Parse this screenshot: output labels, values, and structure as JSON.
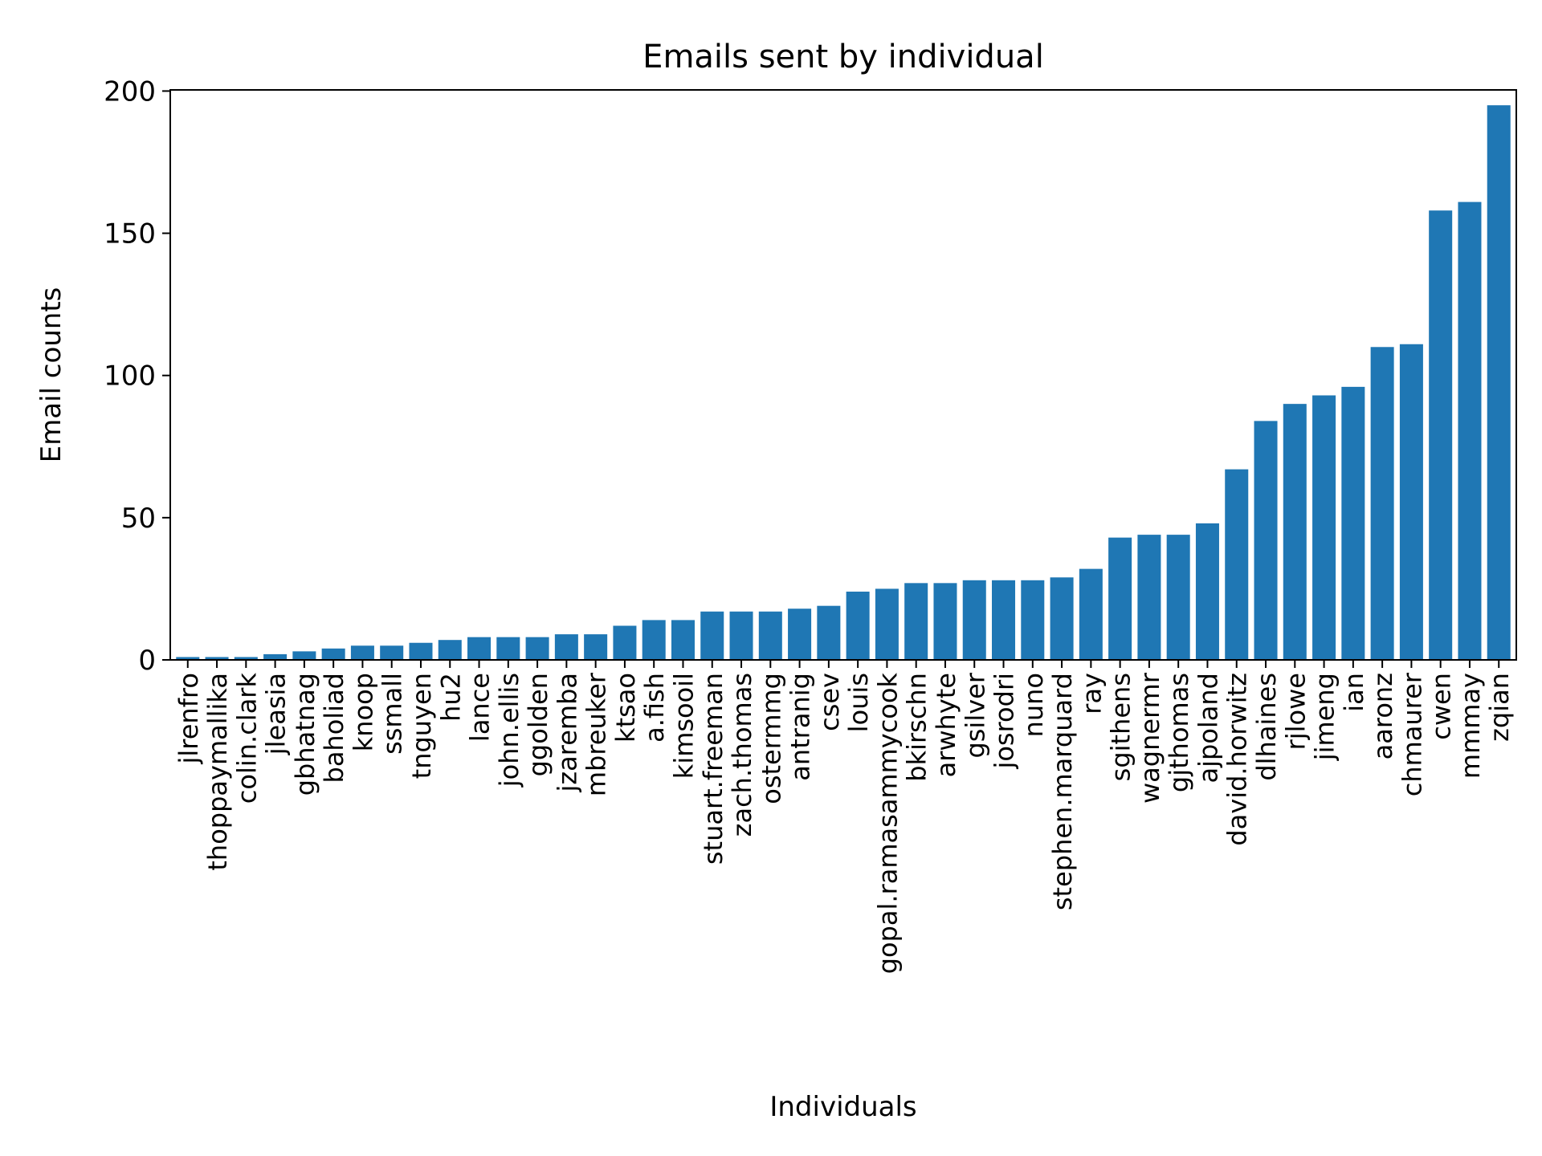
{
  "chart_data": {
    "type": "bar",
    "title": "Emails sent by individual",
    "xlabel": "Individuals",
    "ylabel": "Email counts",
    "ylim": [
      0,
      200
    ],
    "yticks": [
      0,
      50,
      100,
      150,
      200
    ],
    "grid": false,
    "color": "#1f77b4",
    "categories": [
      "jlrenfro",
      "thoppaymallika",
      "colin.clark",
      "jleasia",
      "gbhatnag",
      "baholiad",
      "knoop",
      "ssmall",
      "tnguyen",
      "hu2",
      "lance",
      "john.ellis",
      "ggolden",
      "jzaremba",
      "mbreuker",
      "ktsao",
      "a.fish",
      "kimsooil",
      "stuart.freeman",
      "zach.thomas",
      "ostermmg",
      "antranig",
      "csev",
      "louis",
      "gopal.ramasammycook",
      "bkirschn",
      "arwhyte",
      "gsilver",
      "josrodri",
      "nuno",
      "stephen.marquard",
      "ray",
      "sgithens",
      "wagnermr",
      "gjthomas",
      "ajpoland",
      "david.horwitz",
      "dlhaines",
      "rjlowe",
      "jimeng",
      "ian",
      "aaronz",
      "chmaurer",
      "cwen",
      "mmmay",
      "zqian"
    ],
    "values": [
      1,
      1,
      1,
      2,
      3,
      4,
      5,
      5,
      6,
      7,
      8,
      8,
      8,
      9,
      9,
      12,
      14,
      14,
      17,
      17,
      17,
      18,
      19,
      24,
      25,
      27,
      27,
      28,
      28,
      28,
      29,
      32,
      43,
      44,
      44,
      48,
      67,
      84,
      90,
      93,
      96,
      110,
      111,
      158,
      161,
      195
    ]
  }
}
